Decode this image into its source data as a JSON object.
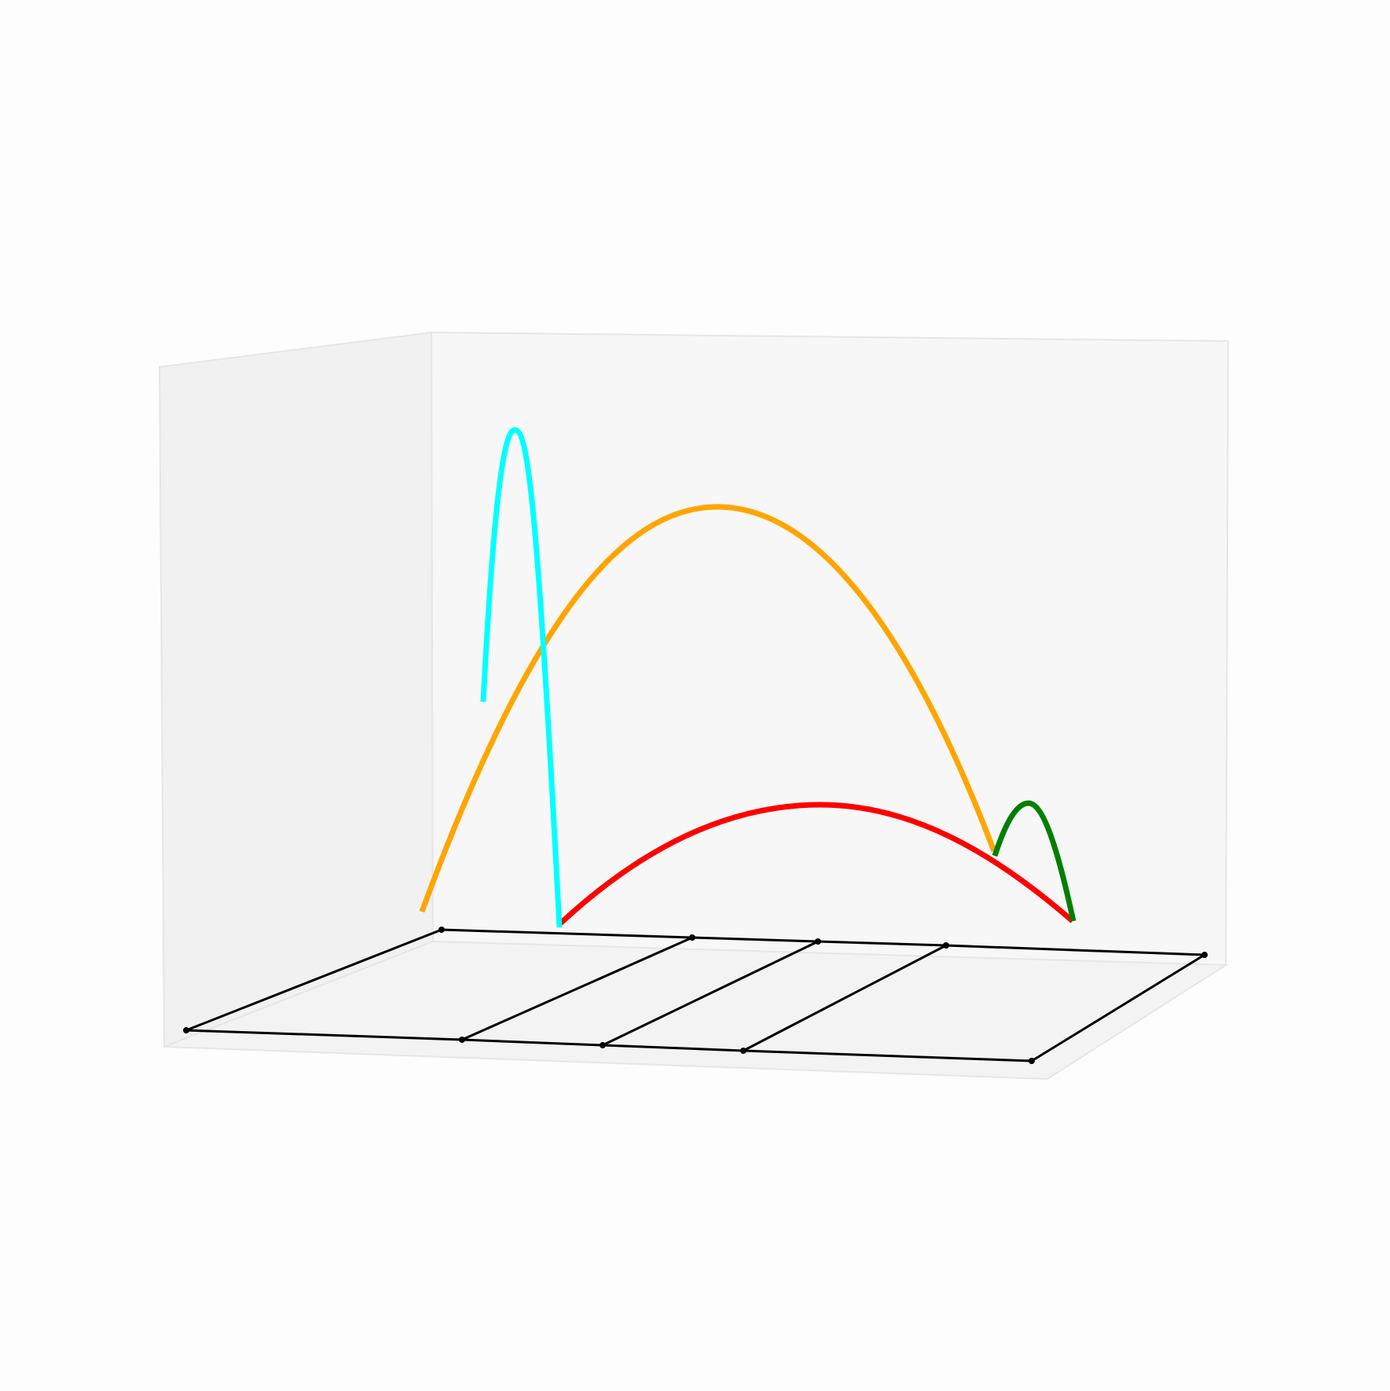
{
  "scene": {
    "background": "#fdfdfd",
    "pane_colors": {
      "left": "#f1f1f1",
      "back": "#f7f7f7",
      "floor": "#f3f3f3"
    },
    "grid_color": "#000000",
    "axes_visible": false,
    "tick_labels": false
  },
  "arcs": [
    {
      "name": "cyan-arc",
      "color": "#00ffff"
    },
    {
      "name": "orange-arc",
      "color": "#ffa500"
    },
    {
      "name": "red-arc",
      "color": "#ff0000"
    },
    {
      "name": "green-arc",
      "color": "#008000"
    }
  ]
}
